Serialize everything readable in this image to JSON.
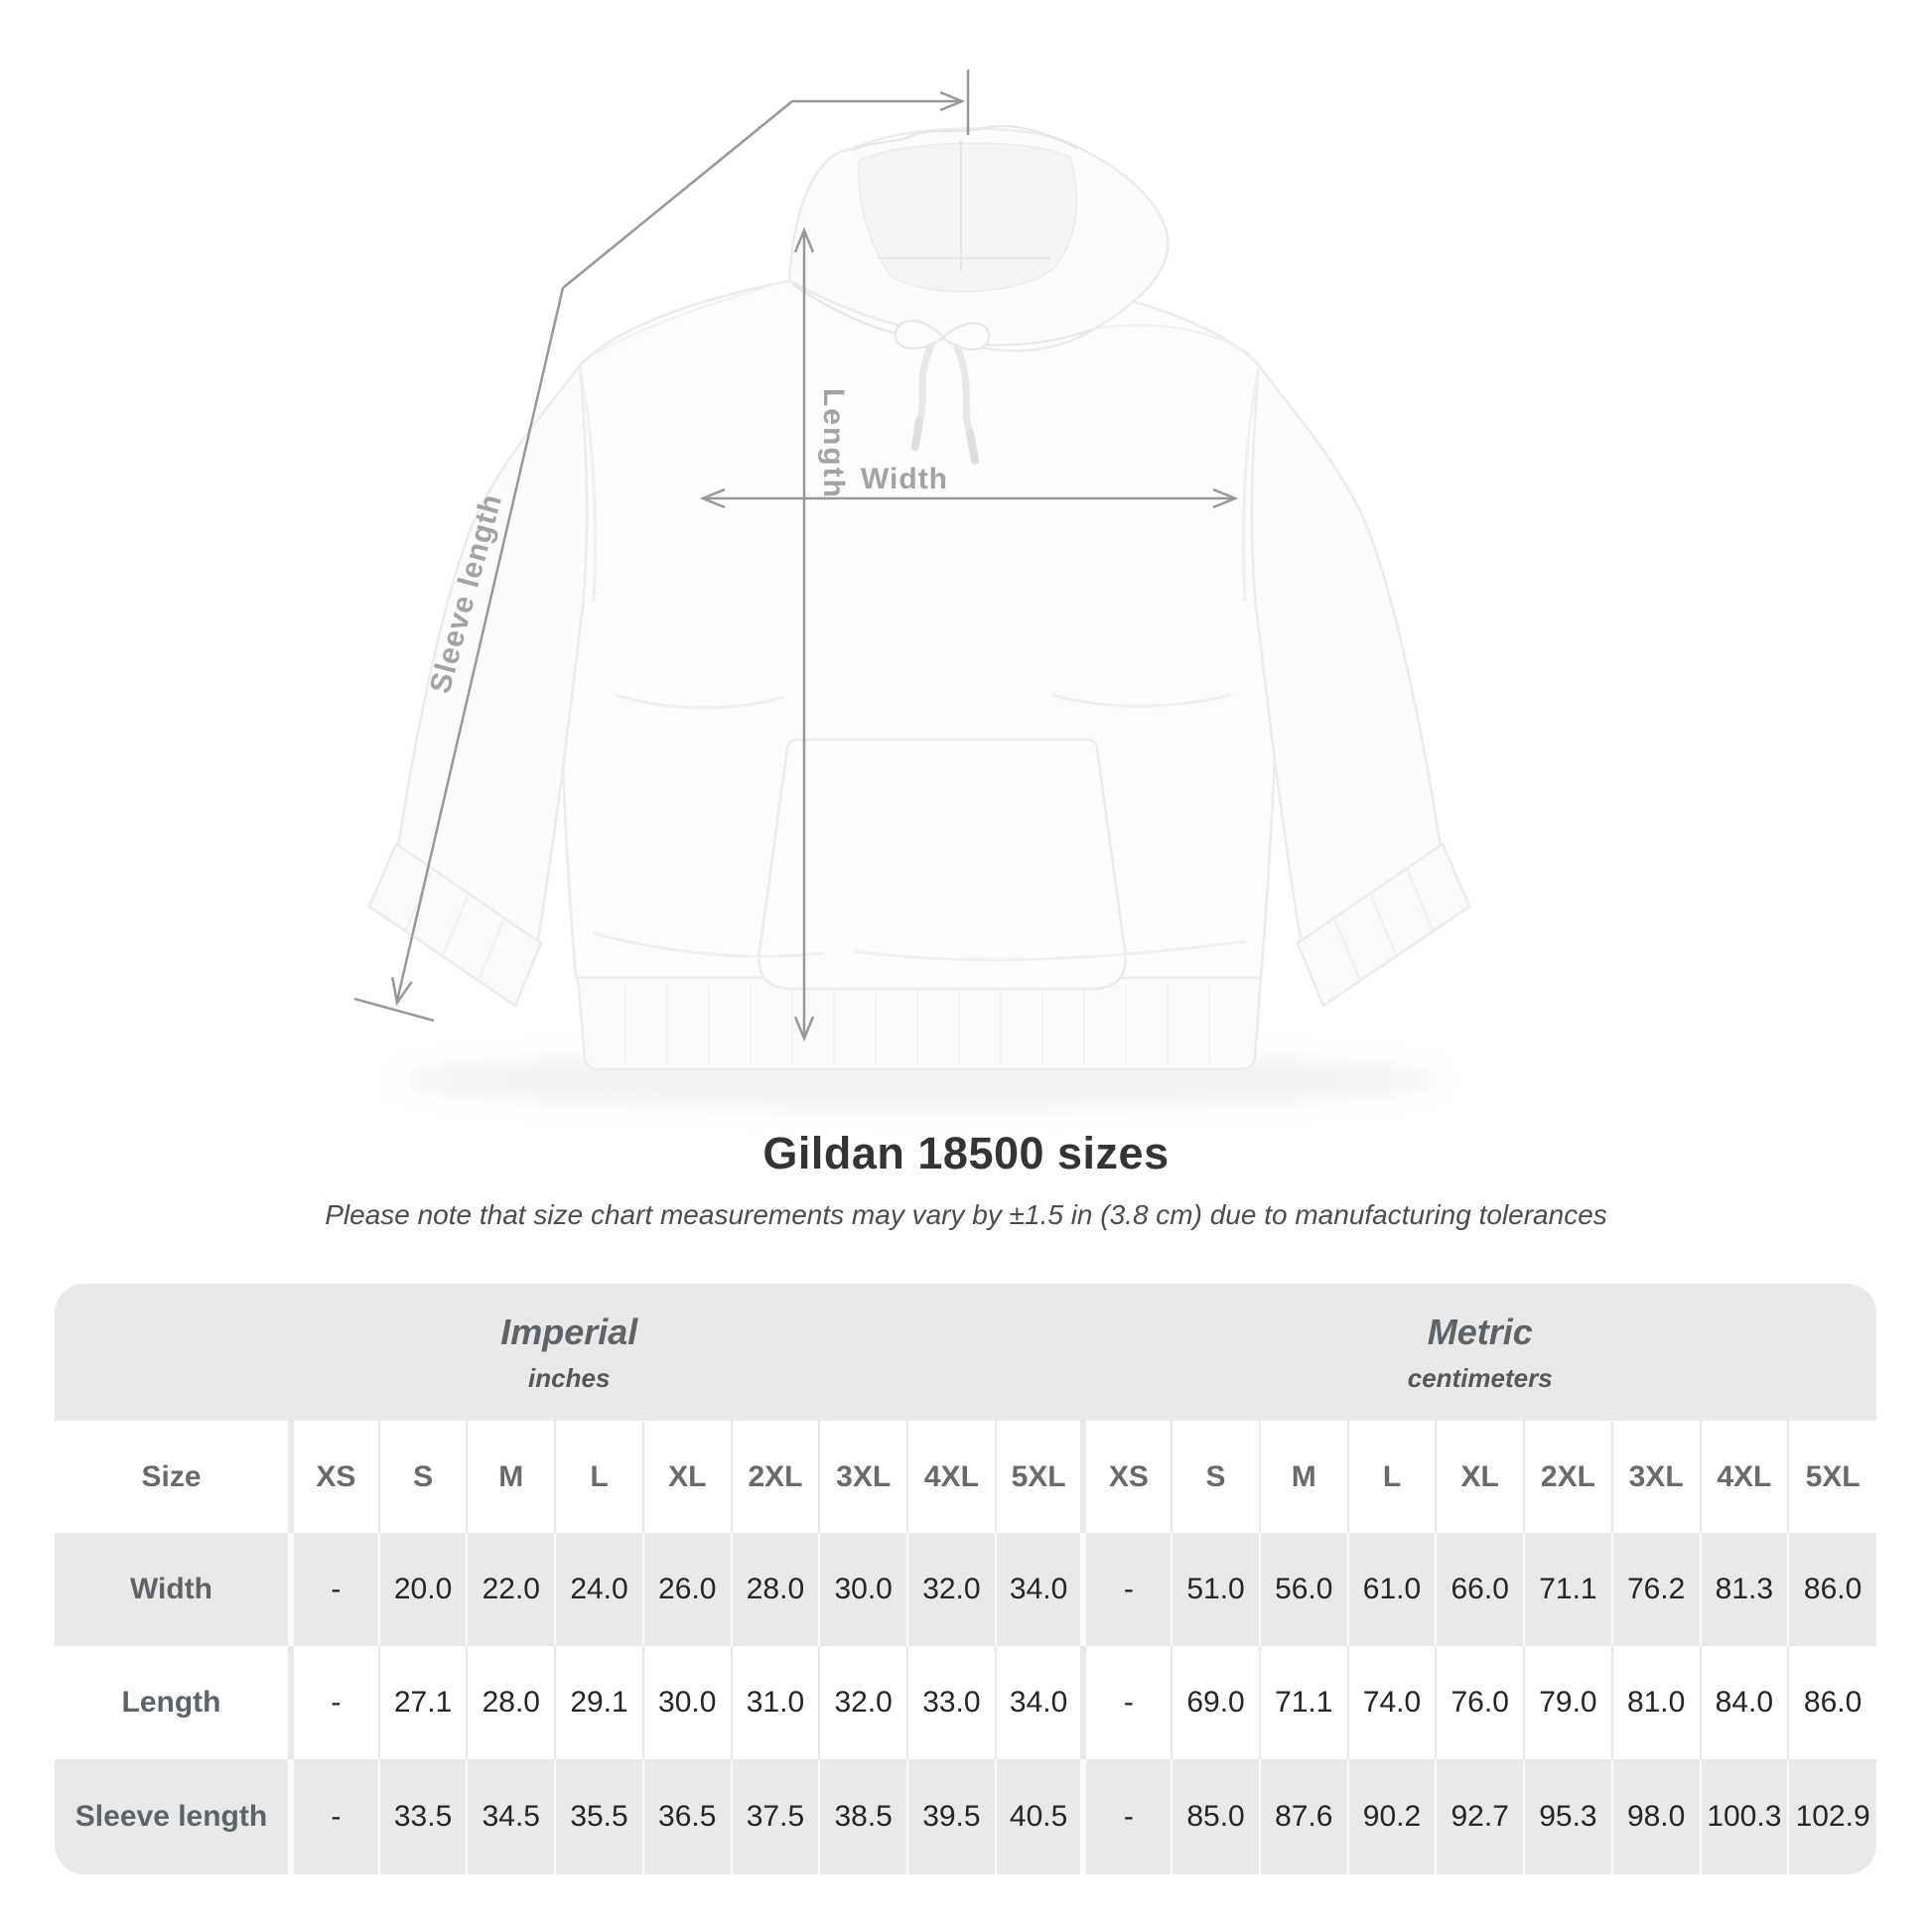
{
  "diagram": {
    "length_label": "Length",
    "width_label": "Width",
    "sleeve_label": "Sleeve length"
  },
  "title": "Gildan 18500 sizes",
  "subtitle": "Please note that size chart measurements may vary by ±1.5 in (3.8 cm) due to manufacturing tolerances",
  "colors": {
    "band_gray": "#e9e9e9",
    "row_alt_gray": "#e9e9e9",
    "label_gray": "#5c646b",
    "value_dark": "#232527",
    "annotation_line": "#97989b",
    "annotation_label": "#a2a3a6",
    "title_dark": "#343434"
  },
  "chart_data": {
    "type": "table",
    "title": "Gildan 18500 sizes",
    "note": "Please note that size chart measurements may vary by ±1.5 in (3.8 cm) due to manufacturing tolerances",
    "size_column_header": "Size",
    "groups": [
      {
        "label": "Imperial",
        "unit": "inches"
      },
      {
        "label": "Metric",
        "unit": "centimeters"
      }
    ],
    "sizes": [
      "XS",
      "S",
      "M",
      "L",
      "XL",
      "2XL",
      "3XL",
      "4XL",
      "5XL"
    ],
    "rows": [
      {
        "label": "Width",
        "imperial": [
          "-",
          "20.0",
          "22.0",
          "24.0",
          "26.0",
          "28.0",
          "30.0",
          "32.0",
          "34.0"
        ],
        "metric": [
          "-",
          "51.0",
          "56.0",
          "61.0",
          "66.0",
          "71.1",
          "76.2",
          "81.3",
          "86.0"
        ]
      },
      {
        "label": "Length",
        "imperial": [
          "-",
          "27.1",
          "28.0",
          "29.1",
          "30.0",
          "31.0",
          "32.0",
          "33.0",
          "34.0"
        ],
        "metric": [
          "-",
          "69.0",
          "71.1",
          "74.0",
          "76.0",
          "79.0",
          "81.0",
          "84.0",
          "86.0"
        ]
      },
      {
        "label": "Sleeve length",
        "imperial": [
          "-",
          "33.5",
          "34.5",
          "35.5",
          "36.5",
          "37.5",
          "38.5",
          "39.5",
          "40.5"
        ],
        "metric": [
          "-",
          "85.0",
          "87.6",
          "90.2",
          "92.7",
          "95.3",
          "98.0",
          "100.3",
          "102.9"
        ]
      }
    ]
  }
}
